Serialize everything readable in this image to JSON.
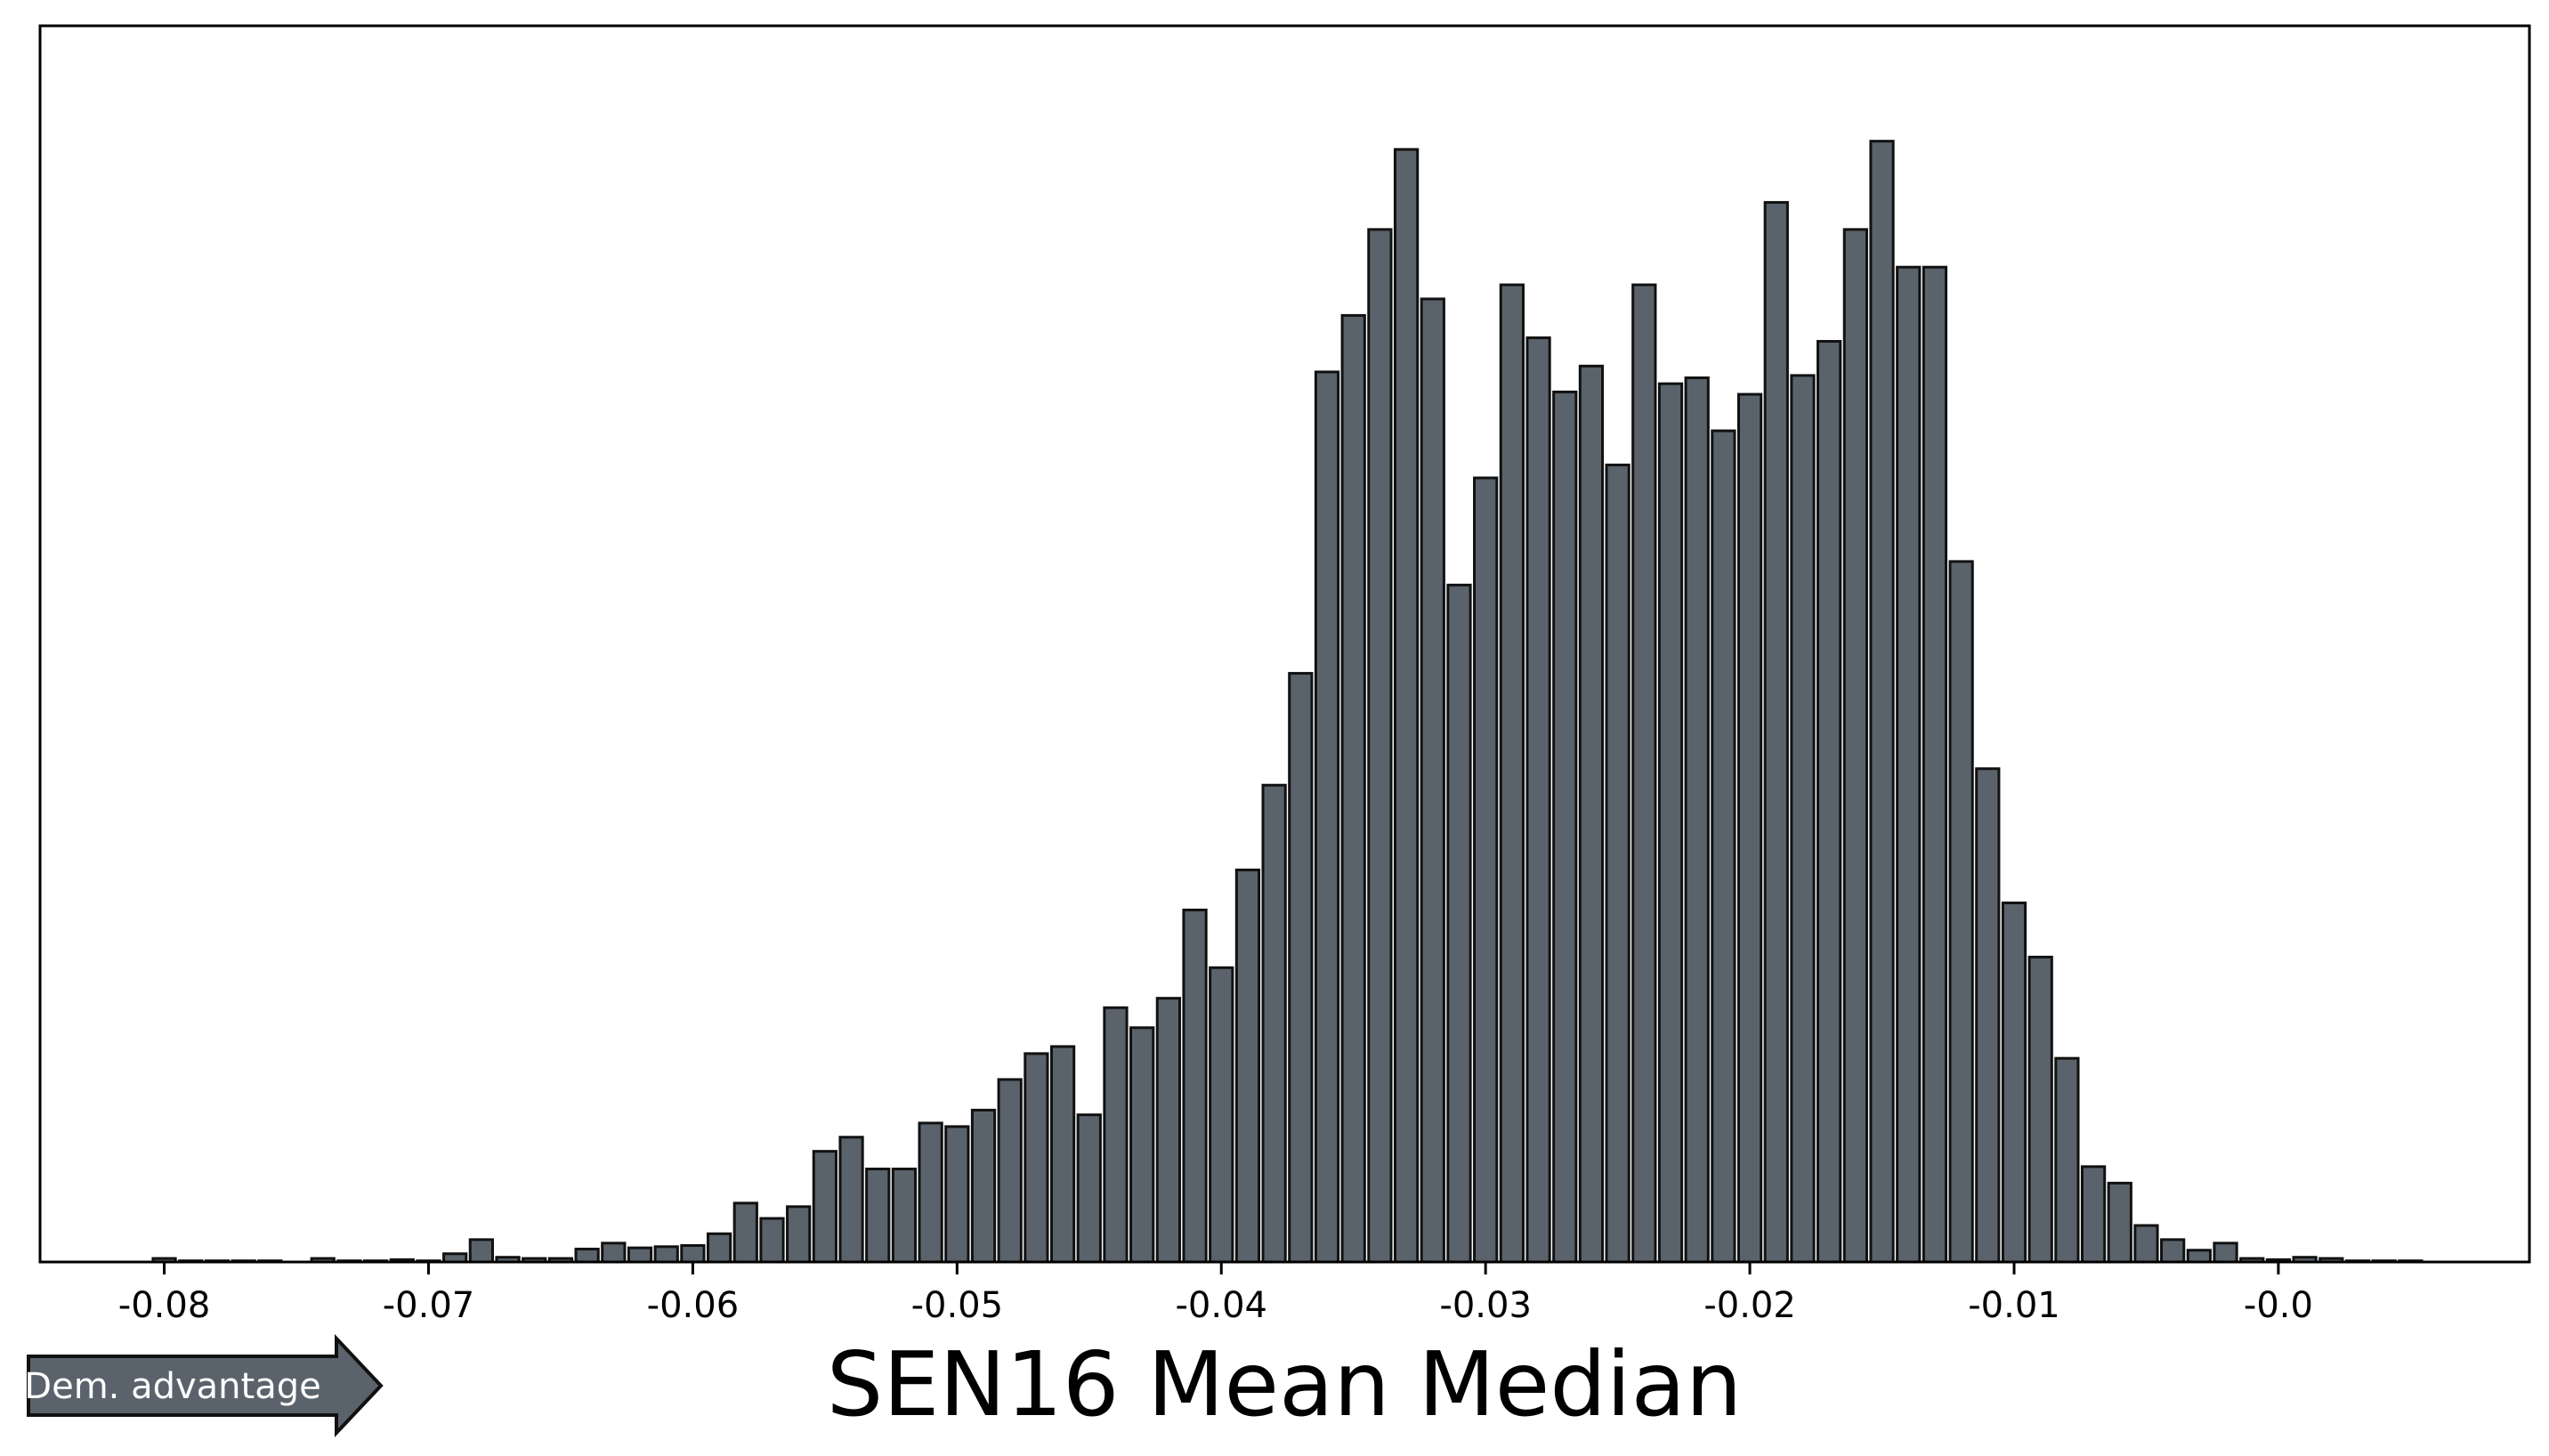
{
  "chart_data": {
    "type": "bar",
    "title": "",
    "xlabel": "SEN16 Mean Median",
    "ylabel": "",
    "x_ticks": [
      "-0.08",
      "-0.07",
      "-0.06",
      "-0.05",
      "-0.04",
      "-0.03",
      "-0.02",
      "-0.01",
      "-0.0"
    ],
    "x_tick_values": [
      -0.08,
      -0.07,
      -0.06,
      -0.05,
      -0.04,
      -0.03,
      -0.02,
      -0.01,
      0.0
    ],
    "xlim": [
      -0.0847,
      0.0095
    ],
    "ylim": [
      0,
      1.05
    ],
    "y_ticks_shown": false,
    "grid": false,
    "bar_color": "#5a636b",
    "edge_color": "#111111",
    "bin_width": 0.001,
    "bin_centers": [
      -0.08,
      -0.079,
      -0.078,
      -0.077,
      -0.076,
      -0.075,
      -0.074,
      -0.073,
      -0.072,
      -0.071,
      -0.07,
      -0.069,
      -0.068,
      -0.067,
      -0.066,
      -0.065,
      -0.064,
      -0.063,
      -0.062,
      -0.061,
      -0.06,
      -0.059,
      -0.058,
      -0.057,
      -0.056,
      -0.055,
      -0.054,
      -0.053,
      -0.052,
      -0.051,
      -0.05,
      -0.049,
      -0.048,
      -0.047,
      -0.046,
      -0.045,
      -0.044,
      -0.043,
      -0.042,
      -0.041,
      -0.04,
      -0.039,
      -0.038,
      -0.037,
      -0.036,
      -0.035,
      -0.034,
      -0.033,
      -0.032,
      -0.031,
      -0.03,
      -0.029,
      -0.028,
      -0.027,
      -0.026,
      -0.025,
      -0.024,
      -0.023,
      -0.022,
      -0.021,
      -0.02,
      -0.019,
      -0.018,
      -0.017,
      -0.016,
      -0.015,
      -0.014,
      -0.013,
      -0.012,
      -0.011,
      -0.01,
      -0.009,
      -0.008,
      -0.007,
      -0.006,
      -0.005,
      -0.004,
      -0.003,
      -0.002,
      -0.001,
      0.0,
      0.001,
      0.002,
      0.003,
      0.004,
      0.005,
      0.006
    ],
    "values": [
      0.003,
      0.001,
      0.001,
      0.001,
      0.001,
      0.0,
      0.003,
      0.001,
      0.001,
      0.002,
      0.001,
      0.007,
      0.019,
      0.004,
      0.003,
      0.003,
      0.011,
      0.016,
      0.012,
      0.013,
      0.014,
      0.024,
      0.05,
      0.037,
      0.047,
      0.094,
      0.106,
      0.079,
      0.079,
      0.118,
      0.115,
      0.129,
      0.155,
      0.177,
      0.183,
      0.125,
      0.216,
      0.199,
      0.224,
      0.299,
      0.25,
      0.333,
      0.405,
      0.5,
      0.756,
      0.804,
      0.877,
      0.945,
      0.818,
      0.575,
      0.666,
      0.83,
      0.785,
      0.739,
      0.761,
      0.677,
      0.83,
      0.746,
      0.751,
      0.706,
      0.737,
      0.9,
      0.753,
      0.782,
      0.877,
      0.952,
      0.845,
      0.845,
      0.595,
      0.419,
      0.305,
      0.259,
      0.173,
      0.081,
      0.067,
      0.031,
      0.019,
      0.01,
      0.016,
      0.003,
      0.002,
      0.004,
      0.003,
      0.001,
      0.001,
      0.001,
      0.0
    ]
  },
  "annotation": {
    "label": "Dem. advantage",
    "fill_color": "#5a636b",
    "text_color": "#ffffff",
    "direction": "right"
  }
}
